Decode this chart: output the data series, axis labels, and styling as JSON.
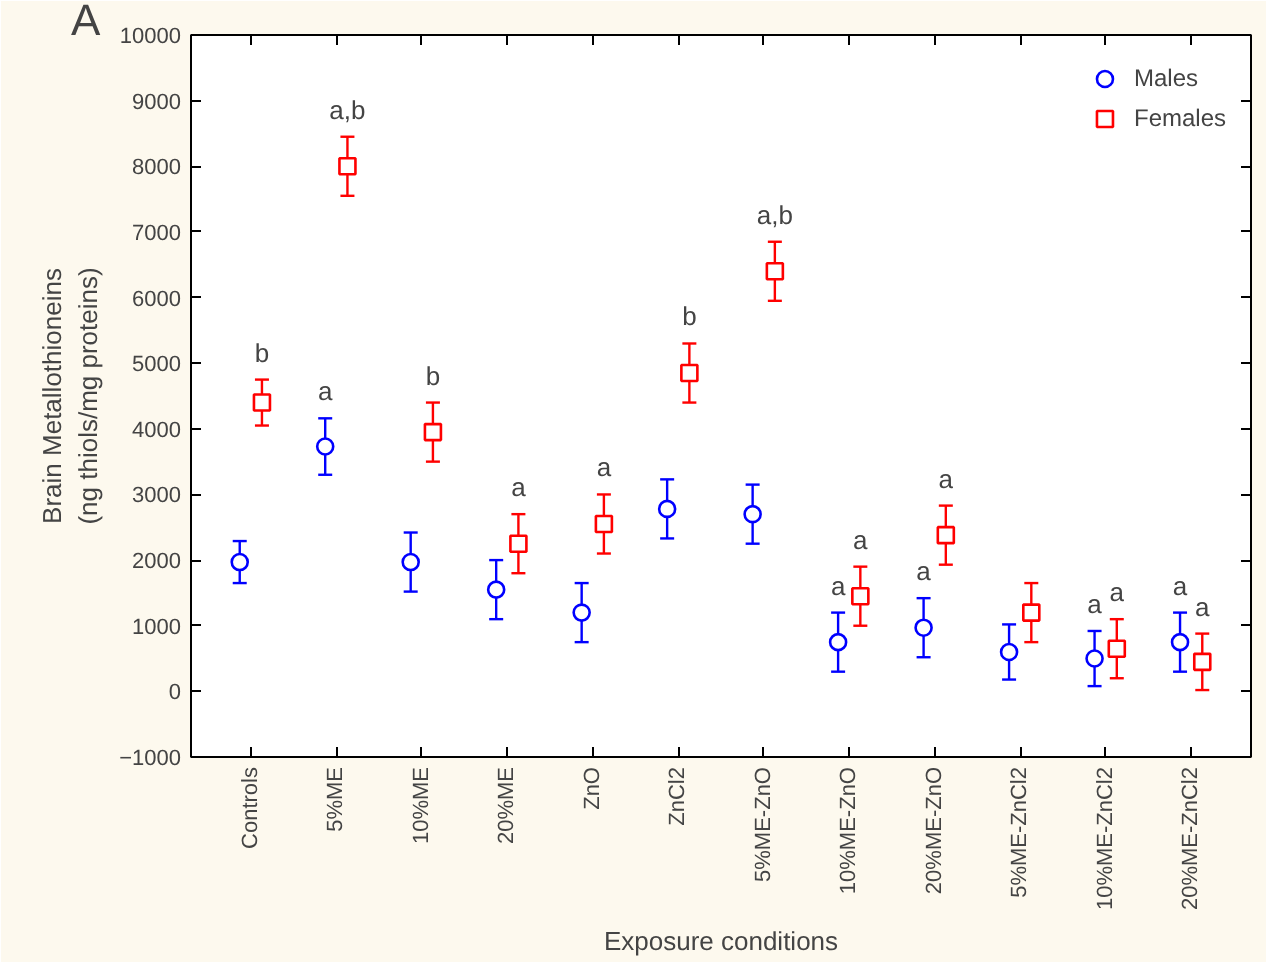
{
  "chart_data": {
    "type": "scatter",
    "xlabel": "Exposure conditions",
    "ylabel": "Brain Metallothioneins\n(ng thiols/mg proteins)",
    "categories": [
      "Controls",
      "5%ME",
      "10%ME",
      "20%ME",
      "ZnO",
      "ZnCl2",
      "5%ME-ZnO",
      "10%ME-ZnO",
      "20%ME-ZnO",
      "5%ME-ZnCl2",
      "10%ME-ZnCl2",
      "20%ME-ZnCl2"
    ],
    "series": [
      {
        "name": "Males",
        "color": "#0000ff",
        "marker": "circle",
        "values": [
          1970,
          3730,
          1970,
          1550,
          1200,
          2780,
          2700,
          750,
          970,
          600,
          500,
          750
        ],
        "value_labels": [
          null,
          "a",
          null,
          null,
          null,
          null,
          null,
          "a",
          "a",
          null,
          "a",
          "a"
        ],
        "errors": [
          320,
          430,
          450,
          450,
          450,
          450,
          450,
          450,
          450,
          420,
          420,
          450
        ]
      },
      {
        "name": "Females",
        "color": "#ff0000",
        "marker": "square",
        "values": [
          4400,
          8000,
          3950,
          2250,
          2550,
          4850,
          6400,
          1450,
          2380,
          1200,
          650,
          450
        ],
        "value_labels": [
          "b",
          "a,b",
          "b",
          "a",
          "a",
          "b",
          "a,b",
          "a",
          "a",
          null,
          "a",
          "a"
        ],
        "errors": [
          350,
          450,
          450,
          450,
          450,
          450,
          450,
          450,
          450,
          450,
          450,
          430
        ]
      }
    ],
    "ylim": [
      -1000,
      10000
    ],
    "yticks": [
      -1000,
      0,
      1000,
      2000,
      3000,
      4000,
      5000,
      6000,
      7000,
      8000,
      9000,
      10000
    ],
    "grid": false,
    "legend": "top right",
    "annotations": [
      "A"
    ]
  }
}
